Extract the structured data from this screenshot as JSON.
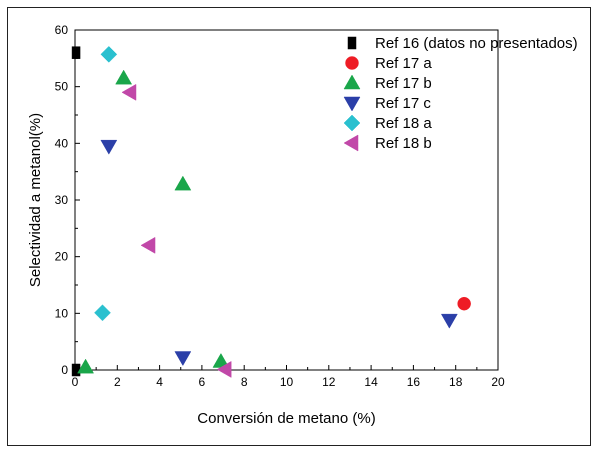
{
  "chart_data": {
    "type": "scatter",
    "title": "",
    "xlabel": "Conversión de metano (%)",
    "ylabel": "Selectividad a metanol(%)",
    "xlim": [
      0,
      20
    ],
    "ylim": [
      0,
      60
    ],
    "x_ticks": [
      0,
      2,
      4,
      6,
      8,
      10,
      12,
      14,
      16,
      18,
      20
    ],
    "y_ticks": [
      0,
      10,
      20,
      30,
      40,
      50,
      60
    ],
    "grid": false,
    "legend_position": "top-right",
    "series": [
      {
        "name": "Ref 16 (datos no presentados)",
        "marker": "square",
        "color": "#000000",
        "points": [
          {
            "x": 0.05,
            "y": 56
          },
          {
            "x": 0.05,
            "y": 0
          }
        ]
      },
      {
        "name": "Ref 17 a",
        "marker": "circle",
        "color": "#ee1c25",
        "points": [
          {
            "x": 18.4,
            "y": 11.7
          }
        ]
      },
      {
        "name": "Ref 17 b",
        "marker": "triangle-up",
        "color": "#1aa64a",
        "points": [
          {
            "x": 2.3,
            "y": 51.5
          },
          {
            "x": 5.1,
            "y": 32.8
          },
          {
            "x": 0.5,
            "y": 0.5
          },
          {
            "x": 6.9,
            "y": 1.5
          }
        ]
      },
      {
        "name": "Ref 17 c",
        "marker": "triangle-down",
        "color": "#2b3fa8",
        "points": [
          {
            "x": 1.6,
            "y": 39.5
          },
          {
            "x": 5.1,
            "y": 2.2
          },
          {
            "x": 17.7,
            "y": 8.8
          }
        ]
      },
      {
        "name": "Ref 18 a",
        "marker": "diamond",
        "color": "#2ac0cf",
        "points": [
          {
            "x": 1.6,
            "y": 55.7
          },
          {
            "x": 1.3,
            "y": 10.1
          }
        ]
      },
      {
        "name": "Ref 18 b",
        "marker": "triangle-left",
        "color": "#c148a8",
        "points": [
          {
            "x": 2.6,
            "y": 49
          },
          {
            "x": 3.5,
            "y": 22
          },
          {
            "x": 7.1,
            "y": 0.1
          }
        ]
      }
    ]
  }
}
